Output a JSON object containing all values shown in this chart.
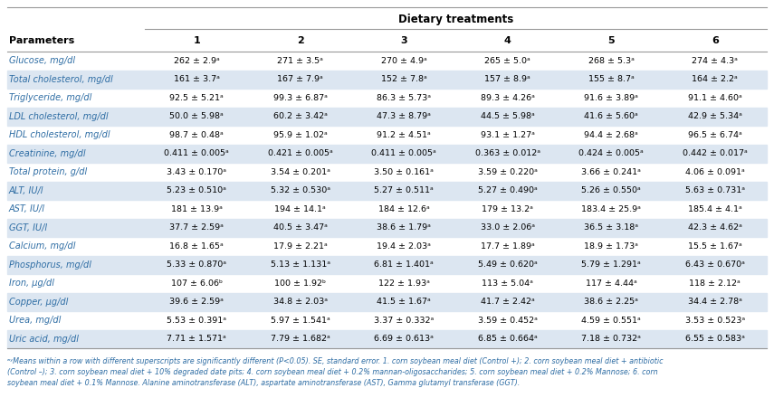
{
  "title": "Dietary treatments",
  "col_headers": [
    "Parameters",
    "1",
    "2",
    "3",
    "4",
    "5",
    "6"
  ],
  "rows": [
    [
      "Glucose, mg/dl",
      "262 ± 2.9ᵃ",
      "271 ± 3.5ᵃ",
      "270 ± 4.9ᵃ",
      "265 ± 5.0ᵃ",
      "268 ± 5.3ᵃ",
      "274 ± 4.3ᵃ"
    ],
    [
      "Total cholesterol, mg/dl",
      "161 ± 3.7ᵃ",
      "167 ± 7.9ᵃ",
      "152 ± 7.8ᵃ",
      "157 ± 8.9ᵃ",
      "155 ± 8.7ᵃ",
      "164 ± 2.2ᵃ"
    ],
    [
      "Triglyceride, mg/dl",
      "92.5 ± 5.21ᵃ",
      "99.3 ± 6.87ᵃ",
      "86.3 ± 5.73ᵃ",
      "89.3 ± 4.26ᵃ",
      "91.6 ± 3.89ᵃ",
      "91.1 ± 4.60ᵃ"
    ],
    [
      "LDL cholesterol, mg/dl",
      "50.0 ± 5.98ᵃ",
      "60.2 ± 3.42ᵃ",
      "47.3 ± 8.79ᵃ",
      "44.5 ± 5.98ᵃ",
      "41.6 ± 5.60ᵃ",
      "42.9 ± 5.34ᵃ"
    ],
    [
      "HDL cholesterol, mg/dl",
      "98.7 ± 0.48ᵃ",
      "95.9 ± 1.02ᵃ",
      "91.2 ± 4.51ᵃ",
      "93.1 ± 1.27ᵃ",
      "94.4 ± 2.68ᵃ",
      "96.5 ± 6.74ᵃ"
    ],
    [
      "Creatinine, mg/dl",
      "0.411 ± 0.005ᵃ",
      "0.421 ± 0.005ᵃ",
      "0.411 ± 0.005ᵃ",
      "0.363 ± 0.012ᵃ",
      "0.424 ± 0.005ᵃ",
      "0.442 ± 0.017ᵃ"
    ],
    [
      "Total protein, g/dl",
      "3.43 ± 0.170ᵃ",
      "3.54 ± 0.201ᵃ",
      "3.50 ± 0.161ᵃ",
      "3.59 ± 0.220ᵃ",
      "3.66 ± 0.241ᵃ",
      "4.06 ± 0.091ᵃ"
    ],
    [
      "ALT, IU/l",
      "5.23 ± 0.510ᵃ",
      "5.32 ± 0.530ᵃ",
      "5.27 ± 0.511ᵃ",
      "5.27 ± 0.490ᵃ",
      "5.26 ± 0.550ᵃ",
      "5.63 ± 0.731ᵃ"
    ],
    [
      "AST, IU/l",
      "181 ± 13.9ᵃ",
      "194 ± 14.1ᵃ",
      "184 ± 12.6ᵃ",
      "179 ± 13.2ᵃ",
      "183.4 ± 25.9ᵃ",
      "185.4 ± 4.1ᵃ"
    ],
    [
      "GGT, IU/l",
      "37.7 ± 2.59ᵃ",
      "40.5 ± 3.47ᵃ",
      "38.6 ± 1.79ᵃ",
      "33.0 ± 2.06ᵃ",
      "36.5 ± 3.18ᵃ",
      "42.3 ± 4.62ᵃ"
    ],
    [
      "Calcium, mg/dl",
      "16.8 ± 1.65ᵃ",
      "17.9 ± 2.21ᵃ",
      "19.4 ± 2.03ᵃ",
      "17.7 ± 1.89ᵃ",
      "18.9 ± 1.73ᵃ",
      "15.5 ± 1.67ᵃ"
    ],
    [
      "Phosphorus, mg/dl",
      "5.33 ± 0.870ᵃ",
      "5.13 ± 1.131ᵃ",
      "6.81 ± 1.401ᵃ",
      "5.49 ± 0.620ᵃ",
      "5.79 ± 1.291ᵃ",
      "6.43 ± 0.670ᵃ"
    ],
    [
      "Iron, μg/dl",
      "107 ± 6.06ᵇ",
      "100 ± 1.92ᵇ",
      "122 ± 1.93ᵃ",
      "113 ± 5.04ᵃ",
      "117 ± 4.44ᵃ",
      "118 ± 2.12ᵃ"
    ],
    [
      "Copper, μg/dl",
      "39.6 ± 2.59ᵃ",
      "34.8 ± 2.03ᵃ",
      "41.5 ± 1.67ᵃ",
      "41.7 ± 2.42ᵃ",
      "38.6 ± 2.25ᵃ",
      "34.4 ± 2.78ᵃ"
    ],
    [
      "Urea, mg/dl",
      "5.53 ± 0.391ᵃ",
      "5.97 ± 1.541ᵃ",
      "3.37 ± 0.332ᵃ",
      "3.59 ± 0.452ᵃ",
      "4.59 ± 0.551ᵃ",
      "3.53 ± 0.523ᵃ"
    ],
    [
      "Uric acid, mg/dl",
      "7.71 ± 1.571ᵃ",
      "7.79 ± 1.682ᵃ",
      "6.69 ± 0.613ᵃ",
      "6.85 ± 0.664ᵃ",
      "7.18 ± 0.732ᵃ",
      "6.55 ± 0.583ᵃ"
    ]
  ],
  "footnote_line1": "ᵃʸMeans within a row with different superscripts are significantly different (P<0.05). SE, standard error. 1. corn soybean meal diet (Control +); 2. corn soybean meal diet + antibiotic",
  "footnote_line2": "(Control –); 3. corn soybean meal diet + 10% degraded date pits; 4. corn soybean meal diet + 0.2% mannan-oligosaccharides; 5. corn soybean meal diet + 0.2% Mannose; 6. corn",
  "footnote_line3": "soybean meal diet + 0.1% Mannose. Alanine aminotransferase (ALT), aspartate aminotransferase (AST), Gamma glutamyl transferase (GGT).",
  "bg_color": "#ffffff",
  "header_color": "#000000",
  "row_label_color": "#2e6da4",
  "data_color": "#000000",
  "title_color": "#000000",
  "line_color": "#999999",
  "alt_row_color": "#dce6f1",
  "normal_row_color": "#ffffff",
  "footnote_color": "#2e6da4"
}
